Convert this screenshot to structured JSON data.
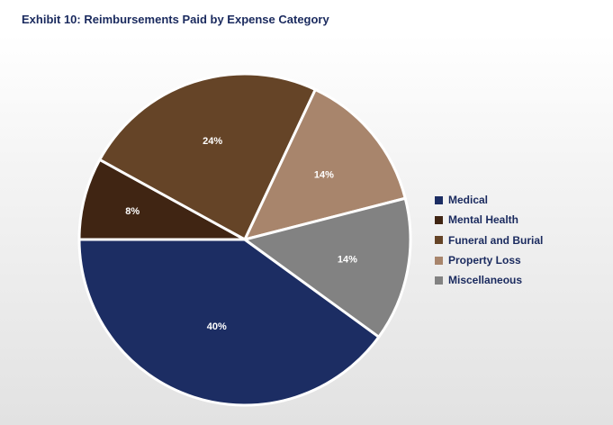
{
  "chart_data": {
    "type": "pie",
    "title": "Exhibit 10: Reimbursements Paid by Expense Category",
    "categories": [
      "Medical",
      "Mental Health",
      "Funeral and Burial",
      "Property Loss",
      "Miscellaneous"
    ],
    "values": [
      40,
      8,
      24,
      14,
      14
    ],
    "value_labels": [
      "40%",
      "8%",
      "24%",
      "14%",
      "14%"
    ],
    "colors": [
      "#1c2d63",
      "#402513",
      "#654427",
      "#a8856c",
      "#828282"
    ],
    "legend_placement": "right"
  }
}
